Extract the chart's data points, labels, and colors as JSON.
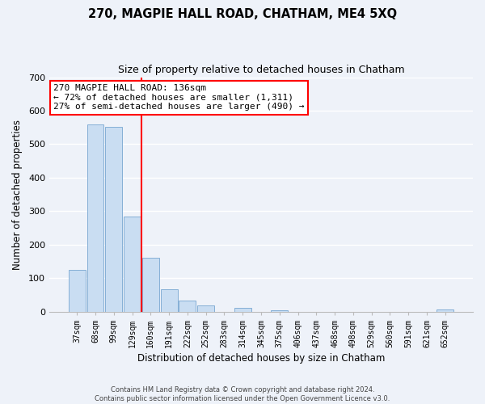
{
  "title": "270, MAGPIE HALL ROAD, CHATHAM, ME4 5XQ",
  "subtitle": "Size of property relative to detached houses in Chatham",
  "xlabel": "Distribution of detached houses by size in Chatham",
  "ylabel": "Number of detached properties",
  "bar_labels": [
    "37sqm",
    "68sqm",
    "99sqm",
    "129sqm",
    "160sqm",
    "191sqm",
    "222sqm",
    "252sqm",
    "283sqm",
    "314sqm",
    "345sqm",
    "375sqm",
    "406sqm",
    "437sqm",
    "468sqm",
    "498sqm",
    "529sqm",
    "560sqm",
    "591sqm",
    "621sqm",
    "652sqm"
  ],
  "bar_values": [
    125,
    558,
    553,
    285,
    162,
    68,
    33,
    19,
    0,
    12,
    0,
    5,
    0,
    0,
    0,
    0,
    0,
    0,
    0,
    0,
    7
  ],
  "bar_color": "#c9ddf2",
  "bar_edge_color": "#85afd6",
  "vline_color": "red",
  "vline_x_index": 3.5,
  "annotation_text": "270 MAGPIE HALL ROAD: 136sqm\n← 72% of detached houses are smaller (1,311)\n27% of semi-detached houses are larger (490) →",
  "annotation_box_color": "white",
  "annotation_border_color": "red",
  "ylim": [
    0,
    700
  ],
  "yticks": [
    0,
    100,
    200,
    300,
    400,
    500,
    600,
    700
  ],
  "background_color": "#eef2f9",
  "grid_color": "white",
  "footer_line1": "Contains HM Land Registry data © Crown copyright and database right 2024.",
  "footer_line2": "Contains public sector information licensed under the Open Government Licence v3.0."
}
